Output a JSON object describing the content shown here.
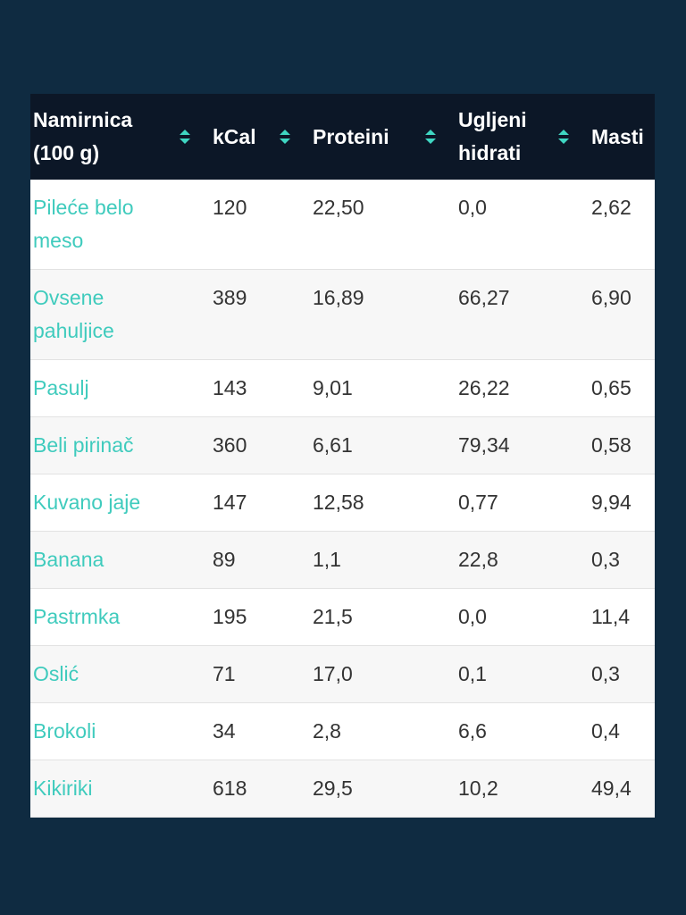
{
  "table": {
    "headers": [
      "Namirnica (100 g)",
      "kCal",
      "Proteini",
      "Ugljeni hidrati",
      "Masti"
    ],
    "rows": [
      [
        "Pileće belo meso",
        "120",
        "22,50",
        "0,0",
        "2,62"
      ],
      [
        "Ovsene pahuljice",
        "389",
        "16,89",
        "66,27",
        "6,90"
      ],
      [
        "Pasulj",
        "143",
        "9,01",
        "26,22",
        "0,65"
      ],
      [
        "Beli pirinač",
        "360",
        "6,61",
        "79,34",
        "0,58"
      ],
      [
        "Kuvano jaje",
        "147",
        "12,58",
        "0,77",
        "9,94"
      ],
      [
        "Banana",
        "89",
        "1,1",
        "22,8",
        "0,3"
      ],
      [
        "Pastrmka",
        "195",
        "21,5",
        "0,0",
        "11,4"
      ],
      [
        "Oslić",
        "71",
        "17,0",
        "0,1",
        "0,3"
      ],
      [
        "Brokoli",
        "34",
        "2,8",
        "6,6",
        "0,4"
      ],
      [
        "Kikiriki",
        "618",
        "29,5",
        "10,2",
        "49,4"
      ]
    ]
  }
}
